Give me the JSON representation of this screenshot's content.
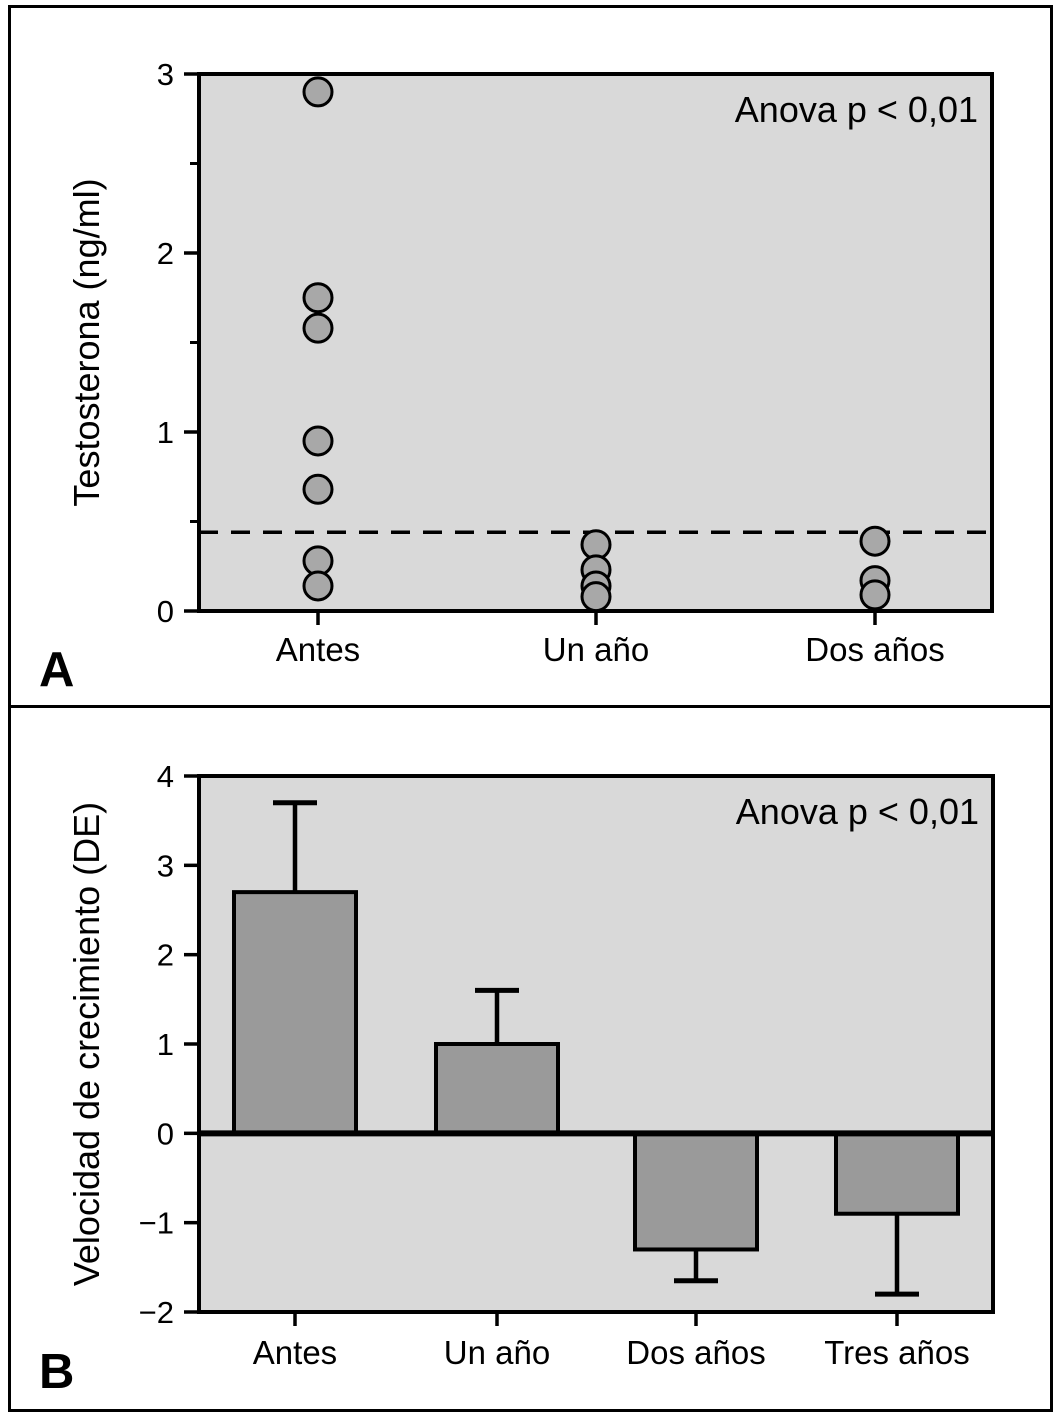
{
  "figure": {
    "background": "#ffffff",
    "plot_background": "#d9d9d9",
    "marker_fill": "#a8a8a8",
    "bar_fill": "#9a9a9a",
    "line_color": "#000000"
  },
  "panels": [
    {
      "letter": "A"
    },
    {
      "letter": "B"
    }
  ],
  "chart_data": [
    {
      "type": "scatter",
      "title": "",
      "ylabel": "Testosterona (ng/ml)",
      "xlabel": "",
      "annotation": "Anova p < 0,01",
      "categories": [
        "Antes",
        "Un año",
        "Dos años"
      ],
      "points": [
        {
          "category": "Antes",
          "values": [
            2.9,
            1.75,
            1.58,
            0.95,
            0.68,
            0.28,
            0.14
          ]
        },
        {
          "category": "Un año",
          "values": [
            0.37,
            0.23,
            0.14,
            0.08
          ]
        },
        {
          "category": "Dos años",
          "values": [
            0.39,
            0.17,
            0.09
          ]
        }
      ],
      "reference_line_y": 0.44,
      "reference_line_style": "dashed",
      "ylim": [
        0,
        3
      ],
      "yticks": [
        0,
        1,
        2,
        3
      ],
      "minor_yticks": [
        0.5,
        1.5,
        2.5
      ],
      "grid": false,
      "legend": "none"
    },
    {
      "type": "bar",
      "title": "",
      "ylabel": "Velocidad de crecimiento (DE)",
      "xlabel": "",
      "annotation": "Anova p < 0,01",
      "categories": [
        "Antes",
        "Un año",
        "Dos años",
        "Tres años"
      ],
      "values": [
        2.7,
        1.0,
        -1.3,
        -0.9
      ],
      "error_to": [
        3.7,
        1.6,
        -1.65,
        -1.8
      ],
      "ylim": [
        -2,
        4
      ],
      "yticks": [
        -2,
        -1,
        0,
        1,
        2,
        3,
        4
      ],
      "grid": false,
      "legend": "none"
    }
  ]
}
